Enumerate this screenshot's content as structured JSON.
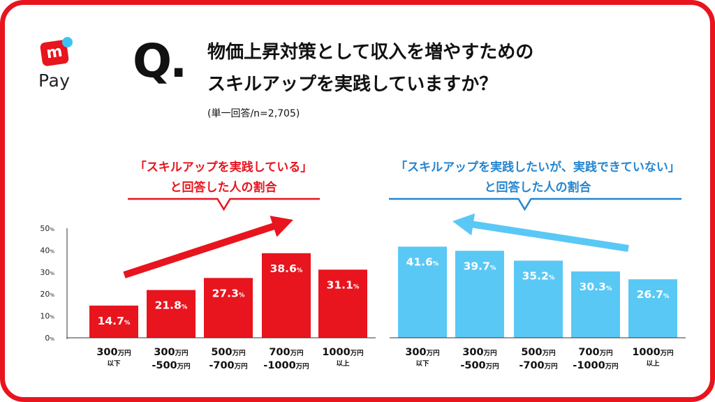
{
  "logo": {
    "mark": "m",
    "text": "Pay"
  },
  "title": {
    "q_mark": "Q.",
    "line1": "物価上昇対策として収入を増やすための",
    "line2": "スキルアップを実践していますか？"
  },
  "subtitle": "(単一回答/n=2,705)",
  "colors": {
    "red": "#e8141e",
    "blue": "#5ac8f5",
    "blue_dark": "#2585d0",
    "text": "#111111"
  },
  "chart_data": [
    {
      "type": "bar",
      "title_line1": "「スキルアップを実践している」",
      "title_line2": "と回答した人の割合",
      "categories": [
        {
          "main": "300",
          "unit": "万円",
          "sub": "以下"
        },
        {
          "main": "300",
          "unit": "万円",
          "sub": "-500",
          "sub_unit": "万円"
        },
        {
          "main": "500",
          "unit": "万円",
          "sub": "-700",
          "sub_unit": "万円"
        },
        {
          "main": "700",
          "unit": "万円",
          "sub": "-1000",
          "sub_unit": "万円"
        },
        {
          "main": "1000",
          "unit": "万円",
          "sub": "以上"
        }
      ],
      "values": [
        14.7,
        21.8,
        27.3,
        38.6,
        31.1
      ],
      "value_unit": "%",
      "ylim": [
        0,
        50
      ],
      "yticks": [
        {
          "value": 0,
          "label": "0",
          "unit": "%"
        },
        {
          "value": 10,
          "label": "10",
          "unit": "%"
        },
        {
          "value": 20,
          "label": "20",
          "unit": "%"
        },
        {
          "value": 30,
          "label": "30",
          "unit": "%"
        },
        {
          "value": 40,
          "label": "40",
          "unit": "%"
        },
        {
          "value": 50,
          "label": "50",
          "unit": "%"
        }
      ],
      "trend": "up",
      "color": "#e8141e"
    },
    {
      "type": "bar",
      "title_line1": "「スキルアップを実践したいが、実践できていない」",
      "title_line2": "と回答した人の割合",
      "categories": [
        {
          "main": "300",
          "unit": "万円",
          "sub": "以下"
        },
        {
          "main": "300",
          "unit": "万円",
          "sub": "-500",
          "sub_unit": "万円"
        },
        {
          "main": "500",
          "unit": "万円",
          "sub": "-700",
          "sub_unit": "万円"
        },
        {
          "main": "700",
          "unit": "万円",
          "sub": "-1000",
          "sub_unit": "万円"
        },
        {
          "main": "1000",
          "unit": "万円",
          "sub": "以上"
        }
      ],
      "values": [
        41.6,
        39.7,
        35.2,
        30.3,
        26.7
      ],
      "value_unit": "%",
      "ylim": [
        0,
        50
      ],
      "trend": "down",
      "color": "#5ac8f5"
    }
  ]
}
